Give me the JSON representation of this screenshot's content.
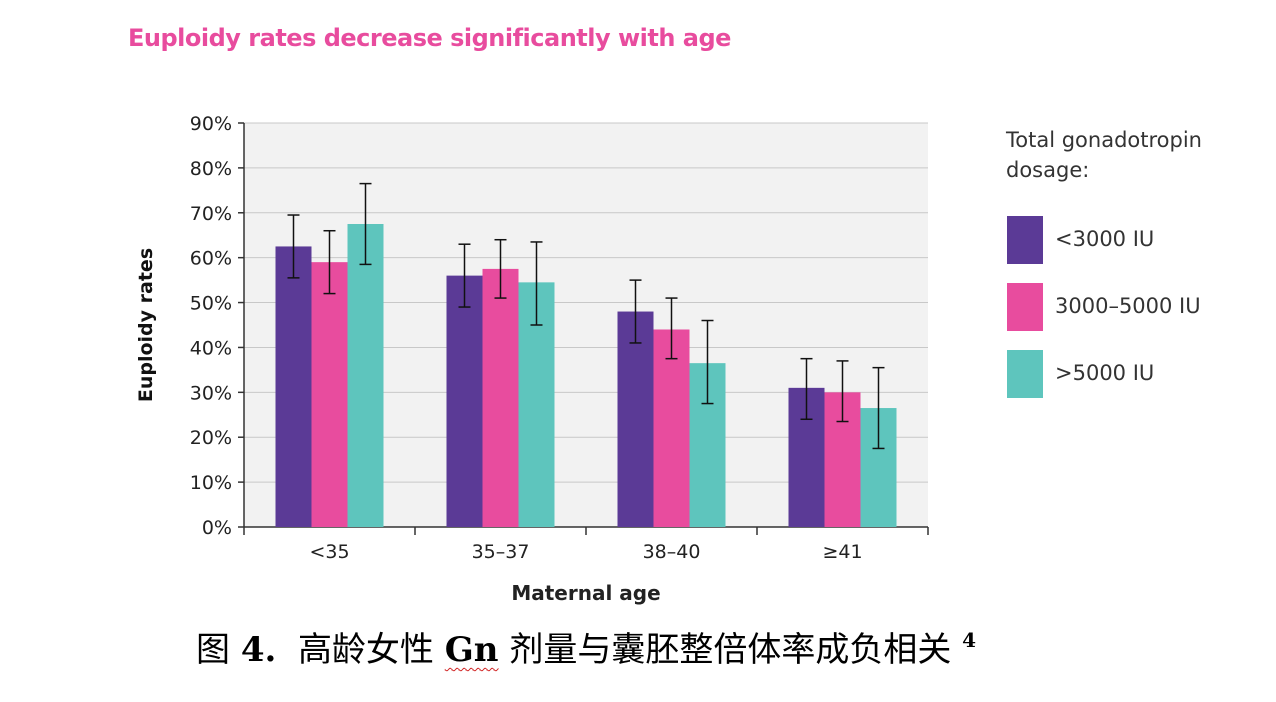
{
  "headline": "Euploidy rates decrease significantly with age",
  "caption": {
    "prefix": "图",
    "fig_num": "4.",
    "text1": "高龄女性",
    "gn": "Gn",
    "text2": "剂量与囊胚整倍体率成负相关",
    "ref": "4"
  },
  "chart_data": {
    "type": "bar",
    "title": "",
    "xlabel": "Maternal age",
    "ylabel": "Euploidy rates",
    "categories": [
      "<35",
      "35–37",
      "38–40",
      "≥41"
    ],
    "ylim": [
      0,
      90
    ],
    "yticks": [
      "0%",
      "10%",
      "20%",
      "30%",
      "40%",
      "50%",
      "60%",
      "70%",
      "80%",
      "90%"
    ],
    "legend_title": "Total gonadotropin dosage:",
    "legend_title_lines": [
      "Total gonadotropin",
      "dosage:"
    ],
    "legend_position": "right",
    "grid": true,
    "series": [
      {
        "name": "<3000 IU",
        "color": "#5b3a96",
        "values": [
          62.5,
          56,
          48,
          31
        ],
        "err_low": [
          55.5,
          49,
          41,
          24
        ],
        "err_high": [
          69.5,
          63,
          55,
          37.5
        ]
      },
      {
        "name": "3000–5000 IU",
        "color": "#e84c9e",
        "values": [
          59,
          57.5,
          44,
          30
        ],
        "err_low": [
          52,
          51,
          37.5,
          23.5
        ],
        "err_high": [
          66,
          64,
          51,
          37
        ]
      },
      {
        "name": ">5000 IU",
        "color": "#5ec5bd",
        "values": [
          67.5,
          54.5,
          36.5,
          26.5
        ],
        "err_low": [
          58.5,
          45,
          27.5,
          17.5
        ],
        "err_high": [
          76.5,
          63.5,
          46,
          35.5
        ]
      }
    ]
  }
}
